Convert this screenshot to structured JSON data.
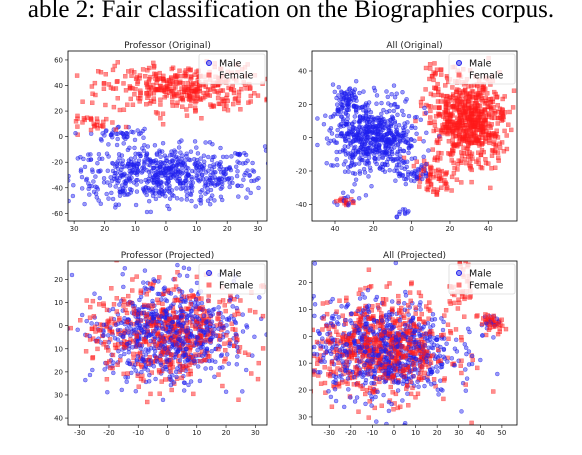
{
  "caption": "able 2: Fair classification on the Biographies corpus.",
  "chart_data": [
    {
      "type": "scatter",
      "title": "Professor (Original)",
      "xlim": [
        -32,
        33
      ],
      "ylim": [
        -66,
        67
      ],
      "xticks": [
        30,
        20,
        10,
        0,
        10,
        20,
        30
      ],
      "yticks": [
        60,
        40,
        20,
        0,
        -20,
        -40,
        -60
      ],
      "ytick_labels": [
        "60",
        "40",
        "20",
        "0",
        "-20",
        "-40",
        "-60"
      ],
      "xtick_labels": [
        "30",
        "20",
        "10",
        "0",
        "10",
        "20",
        "30"
      ],
      "xtick_positions": [
        -30,
        -20,
        -10,
        0,
        10,
        20,
        30
      ],
      "legend": [
        "Male",
        "Female"
      ],
      "legend_loc": "top-right",
      "series": [
        {
          "name": "Male",
          "color": "#2020ee",
          "marker": "circle",
          "clusters": [
            {
              "cx": 0,
              "cy": -30,
              "sx": 16,
              "sy": 11,
              "n": 650
            },
            {
              "cx": -15,
              "cy": 2,
              "sx": 5,
              "sy": 3,
              "n": 40
            }
          ]
        },
        {
          "name": "Female",
          "color": "#ff1a1a",
          "marker": "square",
          "clusters": [
            {
              "cx": 5,
              "cy": 38,
              "sx": 13,
              "sy": 9,
              "n": 360
            },
            {
              "cx": -22,
              "cy": 10,
              "sx": 5,
              "sy": 3,
              "n": 30
            }
          ]
        }
      ]
    },
    {
      "type": "scatter",
      "title": "All (Original)",
      "xlim": [
        -52,
        55
      ],
      "ylim": [
        -50,
        52
      ],
      "xticks": [
        -40,
        -20,
        0,
        20,
        40
      ],
      "xtick_labels": [
        "40",
        "20",
        "0",
        "20",
        "40"
      ],
      "xtick_positions": [
        -40,
        -20,
        0,
        20,
        40
      ],
      "ytick_labels": [
        "40",
        "20",
        "0",
        "-20",
        "-40"
      ],
      "yticks": [
        40,
        20,
        0,
        -20,
        -40
      ],
      "legend": [
        "Male",
        "Female"
      ],
      "legend_loc": "top-right",
      "series": [
        {
          "name": "Male",
          "color": "#2020ee",
          "marker": "circle",
          "clusters": [
            {
              "cx": -20,
              "cy": 0,
              "sx": 11,
              "sy": 11,
              "n": 600
            },
            {
              "cx": -33,
              "cy": 22,
              "sx": 4,
              "sy": 4,
              "n": 70
            },
            {
              "cx": 0,
              "cy": -22,
              "sx": 4,
              "sy": 4,
              "n": 40
            },
            {
              "cx": -35,
              "cy": -38,
              "sx": 2,
              "sy": 2,
              "n": 15
            },
            {
              "cx": -5,
              "cy": -45,
              "sx": 2,
              "sy": 2,
              "n": 10
            }
          ]
        },
        {
          "name": "Female",
          "color": "#ff1a1a",
          "marker": "square",
          "clusters": [
            {
              "cx": 30,
              "cy": 10,
              "sx": 10,
              "sy": 13,
              "n": 650
            },
            {
              "cx": 12,
              "cy": -25,
              "sx": 5,
              "sy": 5,
              "n": 60
            },
            {
              "cx": 12,
              "cy": 40,
              "sx": 2,
              "sy": 2,
              "n": 12
            },
            {
              "cx": -35,
              "cy": -38,
              "sx": 2,
              "sy": 2,
              "n": 12
            }
          ]
        }
      ]
    },
    {
      "type": "scatter",
      "title": "Professor (Projected)",
      "xlim": [
        -34,
        34
      ],
      "ylim": [
        -43,
        28
      ],
      "xticks": [
        -30,
        -20,
        -10,
        0,
        10,
        20,
        30
      ],
      "xtick_labels": [
        "-30",
        "-20",
        "-10",
        "0",
        "10",
        "20",
        "30"
      ],
      "xtick_positions": [
        -30,
        -20,
        -10,
        0,
        10,
        20,
        30
      ],
      "yticks": [
        20,
        10,
        0,
        -10,
        -20,
        -30,
        -40
      ],
      "ytick_labels": [
        "20",
        "10",
        "0",
        "10",
        "20",
        "30",
        "40"
      ],
      "legend": [
        "Male",
        "Female"
      ],
      "legend_loc": "top-right",
      "series": [
        {
          "name": "Male",
          "color": "#2020ee",
          "marker": "circle",
          "clusters": [
            {
              "cx": 0,
              "cy": -3,
              "sx": 12,
              "sy": 10,
              "n": 700
            }
          ]
        },
        {
          "name": "Female",
          "color": "#ff1a1a",
          "marker": "square",
          "clusters": [
            {
              "cx": 0,
              "cy": -3,
              "sx": 13,
              "sy": 10,
              "n": 500
            }
          ]
        }
      ]
    },
    {
      "type": "scatter",
      "title": "All (Projected)",
      "xlim": [
        -38,
        57
      ],
      "ylim": [
        -33,
        28
      ],
      "xticks": [
        -30,
        -20,
        -10,
        0,
        10,
        20,
        30,
        40,
        50
      ],
      "xtick_labels": [
        "-30",
        "-20",
        "-10",
        "0",
        "10",
        "20",
        "30",
        "40",
        "50"
      ],
      "xtick_positions": [
        -30,
        -20,
        -10,
        0,
        10,
        20,
        30,
        40,
        50
      ],
      "yticks": [
        20,
        10,
        0,
        -10,
        -20,
        -30
      ],
      "ytick_labels": [
        "20",
        "10",
        "0",
        "10",
        "20",
        "30"
      ],
      "legend": [
        "Male",
        "Female"
      ],
      "legend_loc": "top-right",
      "series": [
        {
          "name": "Male",
          "color": "#2020ee",
          "marker": "circle",
          "clusters": [
            {
              "cx": -5,
              "cy": -5,
              "sx": 16,
              "sy": 9,
              "n": 700
            },
            {
              "cx": 45,
              "cy": 5,
              "sx": 3,
              "sy": 2,
              "n": 20
            }
          ]
        },
        {
          "name": "Female",
          "color": "#ff1a1a",
          "marker": "square",
          "clusters": [
            {
              "cx": -5,
              "cy": -5,
              "sx": 16,
              "sy": 9,
              "n": 650
            },
            {
              "cx": 45,
              "cy": 5,
              "sx": 3,
              "sy": 2,
              "n": 40
            },
            {
              "cx": 30,
              "cy": 15,
              "sx": 3,
              "sy": 3,
              "n": 25
            },
            {
              "cx": 32,
              "cy": 25,
              "sx": 2,
              "sy": 1.5,
              "n": 10
            }
          ]
        }
      ]
    }
  ]
}
